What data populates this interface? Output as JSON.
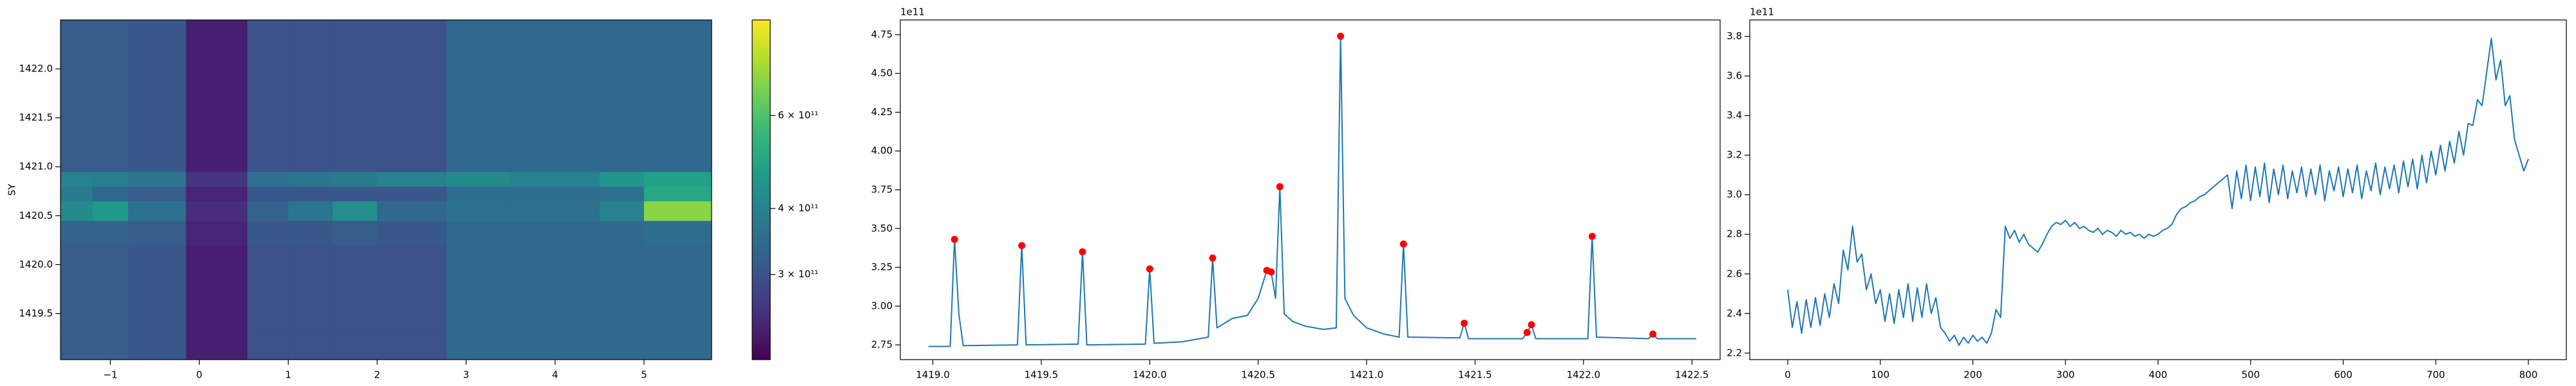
{
  "chart_data": [
    {
      "type": "heatmap",
      "ylabel": "SY",
      "colormap": "viridis",
      "xlim": [
        -1.56,
        5.76
      ],
      "ylim": [
        1419.03,
        1422.5
      ],
      "xticks": [
        {
          "value": -1,
          "label": "−1"
        },
        0,
        1,
        2,
        3,
        4,
        5
      ],
      "yticks": [
        1419.5,
        {
          "value": 1420,
          "label": "1420.0"
        },
        1420.5,
        {
          "value": 1421,
          "label": "1421.0"
        },
        1421.5,
        {
          "value": 1422,
          "label": "1422.0"
        }
      ],
      "x_edges": [
        -1.56,
        -1.2,
        -0.8,
        -0.15,
        0.54,
        1.0,
        1.5,
        2.0,
        2.78,
        3.5,
        4.5,
        5.0,
        5.76
      ],
      "y_edges": [
        1419.03,
        1419.3,
        1419.6,
        1419.9,
        1420.2,
        1420.45,
        1420.65,
        1420.8,
        1420.95,
        1421.3,
        1421.8,
        1422.5
      ],
      "z": [
        [
          320000000000.0,
          320000000000.0,
          310000000000.0,
          235000000000.0,
          300000000000.0,
          300000000000.0,
          300000000000.0,
          300000000000.0,
          340000000000.0,
          340000000000.0,
          340000000000.0,
          340000000000.0
        ],
        [
          320000000000.0,
          320000000000.0,
          310000000000.0,
          235000000000.0,
          300000000000.0,
          300000000000.0,
          300000000000.0,
          300000000000.0,
          340000000000.0,
          340000000000.0,
          340000000000.0,
          340000000000.0
        ],
        [
          320000000000.0,
          320000000000.0,
          310000000000.0,
          235000000000.0,
          300000000000.0,
          300000000000.0,
          300000000000.0,
          300000000000.0,
          340000000000.0,
          340000000000.0,
          340000000000.0,
          340000000000.0
        ],
        [
          320000000000.0,
          320000000000.0,
          310000000000.0,
          235000000000.0,
          300000000000.0,
          300000000000.0,
          300000000000.0,
          300000000000.0,
          340000000000.0,
          340000000000.0,
          340000000000.0,
          340000000000.0
        ],
        [
          330000000000.0,
          330000000000.0,
          320000000000.0,
          240000000000.0,
          310000000000.0,
          310000000000.0,
          320000000000.0,
          310000000000.0,
          340000000000.0,
          340000000000.0,
          340000000000.0,
          350000000000.0
        ],
        [
          420000000000.0,
          460000000000.0,
          360000000000.0,
          250000000000.0,
          330000000000.0,
          370000000000.0,
          430000000000.0,
          340000000000.0,
          360000000000.0,
          360000000000.0,
          400000000000.0,
          700000000000.0
        ],
        [
          380000000000.0,
          340000000000.0,
          320000000000.0,
          240000000000.0,
          310000000000.0,
          310000000000.0,
          310000000000.0,
          310000000000.0,
          350000000000.0,
          350000000000.0,
          360000000000.0,
          500000000000.0
        ],
        [
          400000000000.0,
          390000000000.0,
          370000000000.0,
          260000000000.0,
          360000000000.0,
          370000000000.0,
          380000000000.0,
          400000000000.0,
          420000000000.0,
          400000000000.0,
          450000000000.0,
          480000000000.0
        ],
        [
          320000000000.0,
          320000000000.0,
          310000000000.0,
          235000000000.0,
          300000000000.0,
          300000000000.0,
          300000000000.0,
          300000000000.0,
          340000000000.0,
          340000000000.0,
          340000000000.0,
          340000000000.0
        ],
        [
          320000000000.0,
          320000000000.0,
          310000000000.0,
          235000000000.0,
          300000000000.0,
          300000000000.0,
          300000000000.0,
          300000000000.0,
          340000000000.0,
          340000000000.0,
          340000000000.0,
          340000000000.0
        ],
        [
          320000000000.0,
          320000000000.0,
          310000000000.0,
          235000000000.0,
          300000000000.0,
          300000000000.0,
          300000000000.0,
          300000000000.0,
          340000000000.0,
          340000000000.0,
          340000000000.0,
          340000000000.0
        ]
      ],
      "colorbar": {
        "log": true,
        "lim": [
          207000000000.0,
          910000000000.0
        ],
        "ticks": [
          {
            "value": 300000000000.0,
            "label": "3 × 10¹¹"
          },
          {
            "value": 400000000000.0,
            "label": "4 × 10¹¹"
          },
          {
            "value": 600000000000.0,
            "label": "6 × 10¹¹"
          }
        ]
      }
    },
    {
      "type": "line",
      "offset_label": "1e11",
      "xlim": [
        1418.85,
        1422.63
      ],
      "ylim": [
        2.655,
        4.845
      ],
      "xticks": [
        {
          "value": 1419,
          "label": "1419.0"
        },
        1419.5,
        {
          "value": 1420,
          "label": "1420.0"
        },
        1420.5,
        {
          "value": 1421,
          "label": "1421.0"
        },
        1421.5,
        {
          "value": 1422,
          "label": "1422.0"
        },
        1422.5
      ],
      "yticks": [
        2.75,
        {
          "value": 3,
          "label": "3.00"
        },
        3.25,
        {
          "value": 3.5,
          "label": "3.50"
        },
        3.75,
        {
          "value": 4,
          "label": "4.00"
        },
        4.25,
        {
          "value": 4.5,
          "label": "4.50"
        },
        4.75
      ],
      "series": [
        {
          "color": "#1f77b4",
          "x": [
            1418.98,
            1419.08,
            1419.1,
            1419.12,
            1419.14,
            1419.39,
            1419.41,
            1419.43,
            1419.67,
            1419.69,
            1419.71,
            1419.98,
            1420.0,
            1420.02,
            1420.15,
            1420.27,
            1420.29,
            1420.31,
            1420.38,
            1420.45,
            1420.5,
            1420.54,
            1420.56,
            1420.58,
            1420.6,
            1420.62,
            1420.66,
            1420.72,
            1420.8,
            1420.86,
            1420.88,
            1420.9,
            1420.94,
            1421.0,
            1421.08,
            1421.15,
            1421.17,
            1421.19,
            1421.43,
            1421.45,
            1421.47,
            1421.72,
            1421.74,
            1421.76,
            1421.78,
            1422.02,
            1422.04,
            1422.06,
            1422.3,
            1422.32,
            1422.34,
            1422.52
          ],
          "values": [
            2.74,
            2.74,
            3.43,
            2.95,
            2.745,
            2.75,
            3.39,
            2.75,
            2.755,
            3.35,
            2.75,
            2.755,
            3.24,
            2.76,
            2.77,
            2.8,
            3.31,
            2.86,
            2.92,
            2.94,
            3.05,
            3.23,
            3.22,
            3.05,
            3.77,
            2.95,
            2.9,
            2.87,
            2.85,
            2.86,
            4.74,
            3.05,
            2.94,
            2.86,
            2.82,
            2.8,
            3.4,
            2.8,
            2.795,
            2.89,
            2.79,
            2.79,
            2.83,
            2.88,
            2.79,
            2.79,
            3.45,
            2.8,
            2.79,
            2.82,
            2.79,
            2.79
          ]
        },
        {
          "color": "#ff0000",
          "marker": "o",
          "x": [
            1419.1,
            1419.41,
            1419.69,
            1420.0,
            1420.29,
            1420.54,
            1420.56,
            1420.6,
            1420.88,
            1421.17,
            1421.45,
            1421.74,
            1421.76,
            1422.04,
            1422.32
          ],
          "values": [
            3.43,
            3.39,
            3.35,
            3.24,
            3.31,
            3.23,
            3.22,
            3.77,
            4.74,
            3.4,
            2.89,
            2.83,
            2.88,
            3.45,
            2.82
          ]
        }
      ]
    },
    {
      "type": "line",
      "offset_label": "1e11",
      "xlim": [
        -41,
        841
      ],
      "ylim": [
        2.167,
        3.883
      ],
      "xticks": [
        0,
        100,
        200,
        300,
        400,
        500,
        600,
        700,
        800
      ],
      "yticks": [
        2.2,
        2.4,
        2.6,
        2.8,
        {
          "value": 3,
          "label": "3.0"
        },
        3.2,
        3.4,
        3.6,
        3.8
      ],
      "series": [
        {
          "color": "#1f77b4",
          "x": [
            0,
            5,
            10,
            15,
            20,
            25,
            30,
            35,
            40,
            45,
            50,
            55,
            60,
            65,
            70,
            75,
            80,
            85,
            90,
            95,
            100,
            105,
            110,
            115,
            120,
            125,
            130,
            135,
            140,
            145,
            150,
            155,
            160,
            165,
            170,
            175,
            180,
            185,
            190,
            195,
            200,
            205,
            210,
            215,
            220,
            225,
            230,
            235,
            240,
            245,
            250,
            255,
            260,
            265,
            270,
            275,
            280,
            285,
            290,
            295,
            300,
            305,
            310,
            315,
            320,
            325,
            330,
            335,
            340,
            345,
            350,
            355,
            360,
            365,
            370,
            375,
            380,
            385,
            390,
            395,
            400,
            405,
            410,
            415,
            420,
            425,
            430,
            435,
            440,
            445,
            450,
            455,
            460,
            465,
            470,
            475,
            480,
            485,
            490,
            495,
            500,
            505,
            510,
            515,
            520,
            525,
            530,
            535,
            540,
            545,
            550,
            555,
            560,
            565,
            570,
            575,
            580,
            585,
            590,
            595,
            600,
            605,
            610,
            615,
            620,
            625,
            630,
            635,
            640,
            645,
            650,
            655,
            660,
            665,
            670,
            675,
            680,
            685,
            690,
            695,
            700,
            705,
            710,
            715,
            720,
            725,
            730,
            735,
            740,
            745,
            750,
            755,
            760,
            765,
            770,
            775,
            780,
            785,
            790,
            795,
            800
          ],
          "values": [
            2.52,
            2.33,
            2.46,
            2.3,
            2.47,
            2.33,
            2.48,
            2.34,
            2.5,
            2.38,
            2.55,
            2.45,
            2.72,
            2.62,
            2.84,
            2.66,
            2.7,
            2.52,
            2.6,
            2.45,
            2.52,
            2.36,
            2.5,
            2.35,
            2.52,
            2.38,
            2.55,
            2.36,
            2.53,
            2.38,
            2.55,
            2.4,
            2.48,
            2.33,
            2.3,
            2.26,
            2.29,
            2.24,
            2.28,
            2.25,
            2.29,
            2.26,
            2.28,
            2.25,
            2.3,
            2.42,
            2.38,
            2.84,
            2.78,
            2.82,
            2.76,
            2.8,
            2.75,
            2.73,
            2.71,
            2.75,
            2.8,
            2.84,
            2.86,
            2.85,
            2.87,
            2.84,
            2.86,
            2.83,
            2.84,
            2.82,
            2.81,
            2.83,
            2.8,
            2.82,
            2.81,
            2.79,
            2.82,
            2.8,
            2.81,
            2.79,
            2.8,
            2.78,
            2.8,
            2.79,
            2.8,
            2.82,
            2.83,
            2.85,
            2.9,
            2.93,
            2.94,
            2.96,
            2.97,
            2.99,
            3.0,
            3.02,
            3.04,
            3.06,
            3.08,
            3.1,
            2.93,
            3.12,
            2.98,
            3.15,
            2.97,
            3.14,
            2.99,
            3.16,
            2.96,
            3.13,
            3.0,
            3.15,
            2.98,
            3.12,
            3.01,
            3.14,
            2.99,
            3.13,
            3.0,
            3.15,
            2.97,
            3.12,
            3.02,
            3.14,
            2.99,
            3.13,
            3.01,
            3.15,
            2.98,
            3.12,
            3.02,
            3.16,
            3.0,
            3.14,
            3.03,
            3.15,
            3.01,
            3.17,
            3.04,
            3.18,
            3.03,
            3.2,
            3.06,
            3.22,
            3.1,
            3.25,
            3.12,
            3.27,
            3.16,
            3.32,
            3.2,
            3.36,
            3.35,
            3.48,
            3.45,
            3.62,
            3.79,
            3.58,
            3.68,
            3.45,
            3.5,
            3.28,
            3.2,
            3.12,
            3.18
          ]
        }
      ]
    }
  ]
}
